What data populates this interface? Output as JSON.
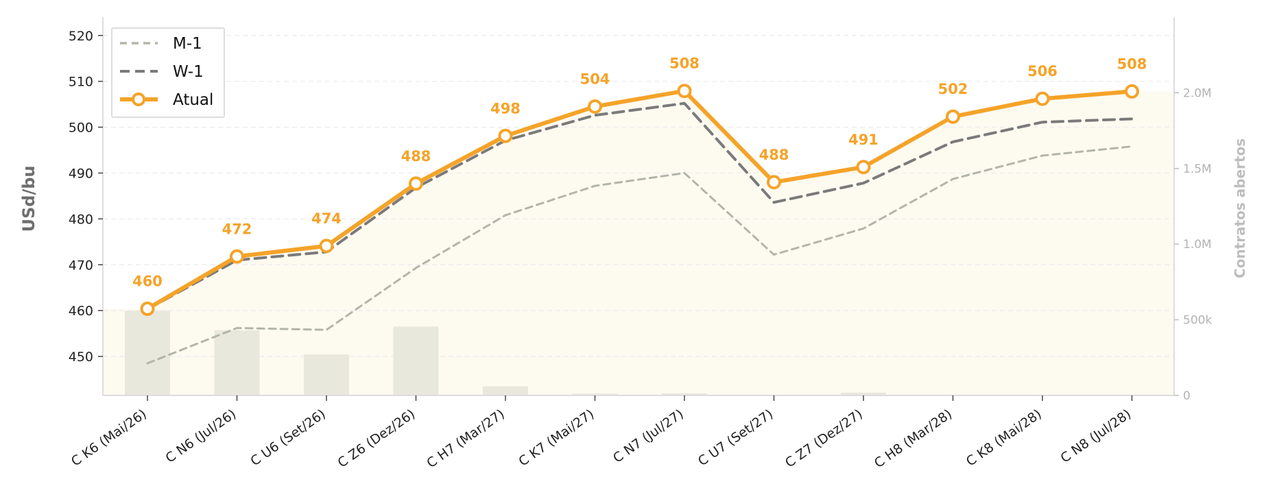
{
  "chart_data": {
    "type": "line",
    "categories": [
      "C K6 (Mai/26)",
      "C N6 (Jul/26)",
      "C U6 (Set/26)",
      "C Z6 (Dez/26)",
      "C H7 (Mar/27)",
      "C K7 (Mai/27)",
      "C N7 (Jul/27)",
      "C U7 (Set/27)",
      "C Z7 (Dez/27)",
      "C H8 (Mar/28)",
      "C K8 (Mai/28)",
      "C N8 (Jul/28)"
    ],
    "ylabel": "USd/bu",
    "y2label": "Contratos abertos",
    "ylim": [
      441.5,
      524
    ],
    "yticks": [
      450,
      460,
      470,
      480,
      490,
      500,
      510,
      520
    ],
    "y2lim": [
      0,
      2500000
    ],
    "y2ticks": [
      0,
      500000,
      1000000,
      1500000,
      2000000
    ],
    "y2ticklabels": [
      "0",
      "500k",
      "1.0M",
      "1.5M",
      "2.0M"
    ],
    "grid": true,
    "legend_position": "top-left",
    "series": [
      {
        "name": "M-1",
        "style": "dashed",
        "color": "#b3b5a8",
        "values": [
          448.5,
          456.2,
          455.8,
          469.3,
          480.8,
          487.2,
          490.0,
          472.2,
          477.9,
          488.7,
          493.8,
          495.8
        ]
      },
      {
        "name": "W-1",
        "style": "dashed",
        "color": "#7a7a7a",
        "values": [
          460.3,
          471.0,
          472.8,
          486.8,
          497.1,
          502.6,
          505.2,
          483.6,
          487.8,
          496.8,
          501.1,
          501.8
        ]
      },
      {
        "name": "Atual",
        "style": "solid-markers",
        "color": "#f5a329",
        "values": [
          460.4,
          471.8,
          474.1,
          487.7,
          498.1,
          504.5,
          507.9,
          488.0,
          491.3,
          502.3,
          506.2,
          507.8
        ]
      }
    ],
    "data_labels": [
      "460",
      "472",
      "474",
      "488",
      "498",
      "504",
      "508",
      "488",
      "491",
      "502",
      "506",
      "508"
    ],
    "open_interest": [
      560000,
      430000,
      270000,
      455000,
      60000,
      12000,
      14000,
      5000,
      18000,
      5000,
      5000,
      5000
    ],
    "colors": {
      "atual": "#f5a329",
      "w1": "#7a7a7a",
      "m1": "#b3b5a8",
      "bars": "#e8e8dc",
      "area": "#fdfaf0",
      "grid": "#eeeeee"
    }
  }
}
